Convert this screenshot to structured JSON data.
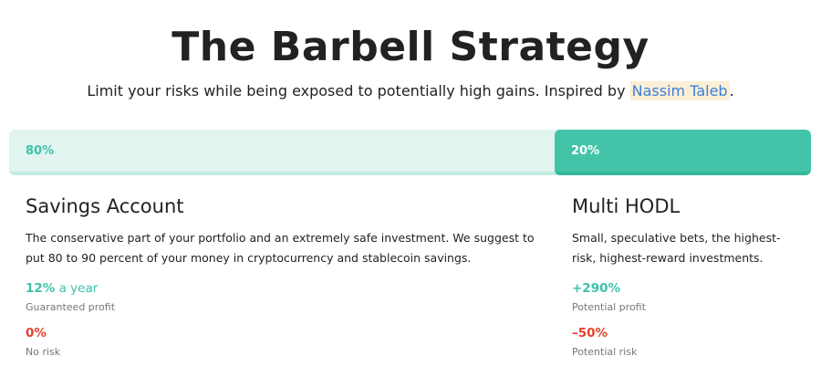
{
  "header": {
    "title": "The Barbell Strategy",
    "subtitle": "Limit your risks while being exposed to potentially high gains. Inspired by ",
    "link": "Nassim Taleb",
    "suffix": "."
  },
  "allocation": {
    "safe_label": "80%",
    "safe_fraction": 0.8,
    "risky_label": "20%",
    "risky_fraction": 0.2,
    "colors": {
      "light": "#e1f4f0",
      "accent": "#43c4a9",
      "risk": "#e5412b",
      "link": "#3b7fd9"
    }
  },
  "savings": {
    "title": "Savings Account",
    "description": "The conservative part of your portfolio and an extremely safe investment. We suggest to put 80 to 90 percent of your money in cryptocurrency and stablecoin savings.",
    "profit_value": "12%",
    "profit_unit": " a year",
    "profit_label": "Guaranteed profit",
    "risk_value": "0%",
    "risk_label": "No risk"
  },
  "hodl": {
    "title": "Multi HODL",
    "description": "Small, speculative bets, the highest-risk, highest-reward investments.",
    "profit_value": "+290%",
    "profit_label": "Potential profit",
    "risk_value": "–50%",
    "risk_label": "Potential risk"
  }
}
